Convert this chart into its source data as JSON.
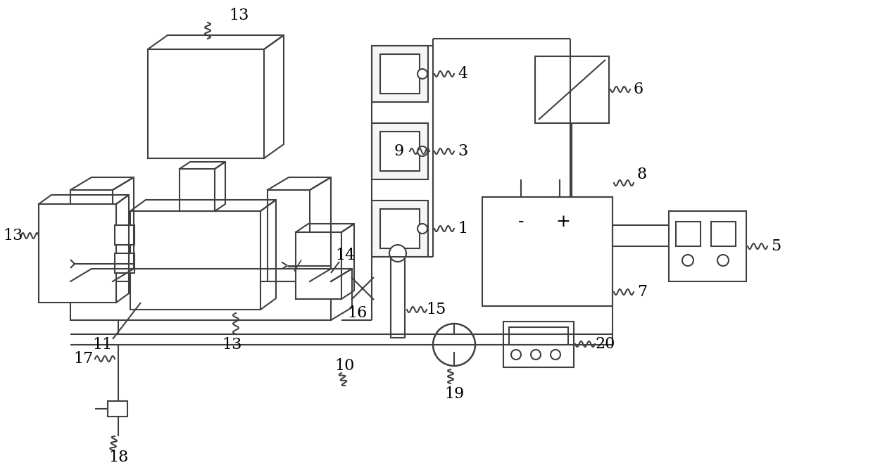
{
  "bg": "#ffffff",
  "lc": "#404040",
  "lw": 1.5,
  "fw": 12.4,
  "fh": 6.68
}
